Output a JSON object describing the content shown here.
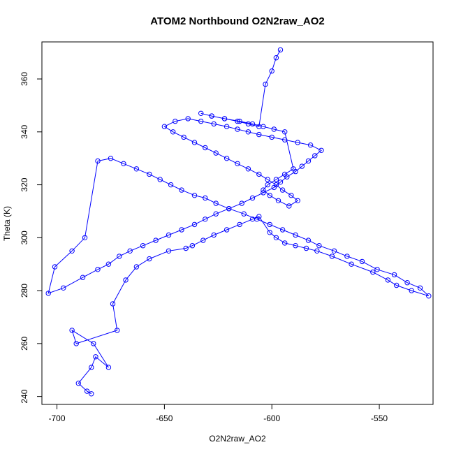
{
  "chart_data": {
    "type": "scatter",
    "mode": "lines+markers",
    "title": "ATOM2 Northbound O2N2raw_AO2",
    "xlabel": "O2N2raw_AO2",
    "ylabel": "Theta (K)",
    "xlim": [
      -707,
      -525
    ],
    "ylim": [
      237,
      374
    ],
    "xticks": [
      -700,
      -650,
      -600,
      -550
    ],
    "yticks": [
      240,
      260,
      280,
      300,
      320,
      340,
      360
    ],
    "grid": false,
    "legend": "none",
    "marker": "open-circle",
    "color": "#0000ff",
    "series": [
      {
        "x": [
          -684,
          -686,
          -690,
          -684,
          -682,
          -676,
          -683,
          -693,
          -691,
          -672,
          -674,
          -668,
          -663,
          -657,
          -648,
          -640,
          -637,
          -632,
          -627,
          -621,
          -615,
          -609,
          -606,
          -601,
          -598,
          -594,
          -589,
          -584,
          -579,
          -572,
          -563,
          -553,
          -546,
          -542,
          -535,
          -527,
          -531,
          -537,
          -543,
          -551,
          -558,
          -565,
          -571,
          -578,
          -583,
          -589,
          -595,
          -601,
          -607,
          -613,
          -620,
          -626,
          -631,
          -636,
          -642,
          -647,
          -652,
          -657,
          -663,
          -669,
          -675,
          -681,
          -687,
          -693,
          -701,
          -704,
          -697,
          -688,
          -681,
          -676,
          -671,
          -666,
          -660,
          -654,
          -648,
          -642,
          -636,
          -631,
          -626,
          -620,
          -614,
          -609,
          -604,
          -599,
          -596,
          -593,
          -589,
          -586,
          -583,
          -580,
          -577,
          -582,
          -588,
          -594,
          -600,
          -606,
          -611,
          -616,
          -621,
          -627,
          -633,
          -639,
          -645,
          -650,
          -646,
          -641,
          -636,
          -631,
          -626,
          -621,
          -616,
          -611,
          -606,
          -602,
          -598,
          -595,
          -591,
          -588,
          -592,
          -597,
          -601,
          -604,
          -602,
          -598,
          -594,
          -590,
          -594,
          -599,
          -604,
          -609,
          -615,
          -622,
          -628,
          -633,
          -628,
          -622,
          -616,
          -611,
          -606,
          -603,
          -600,
          -598,
          -596
        ],
        "y": [
          241,
          242,
          245,
          251,
          255,
          251,
          260,
          265,
          260,
          265,
          275,
          284,
          289,
          292,
          295,
          296,
          297,
          299,
          301,
          303,
          305,
          307,
          308,
          302,
          300,
          298,
          297,
          296,
          295,
          293,
          290,
          287,
          284,
          282,
          280,
          278,
          281,
          283,
          286,
          288,
          291,
          293,
          295,
          297,
          299,
          301,
          303,
          305,
          307,
          309,
          311,
          313,
          315,
          316,
          318,
          320,
          322,
          324,
          326,
          328,
          330,
          329,
          300,
          295,
          289,
          279,
          281,
          285,
          288,
          290,
          293,
          295,
          297,
          299,
          301,
          303,
          305,
          307,
          309,
          311,
          313,
          315,
          317,
          319,
          321,
          323,
          325,
          327,
          329,
          331,
          333,
          335,
          336,
          337,
          338,
          339,
          340,
          341,
          342,
          343,
          344,
          345,
          344,
          342,
          340,
          338,
          336,
          334,
          332,
          330,
          328,
          326,
          324,
          322,
          320,
          318,
          316,
          314,
          312,
          314,
          316,
          318,
          320,
          322,
          324,
          326,
          340,
          341,
          342,
          343,
          344,
          345,
          346,
          347,
          346,
          345,
          344,
          343,
          342,
          358,
          363,
          368,
          371
        ]
      }
    ]
  }
}
